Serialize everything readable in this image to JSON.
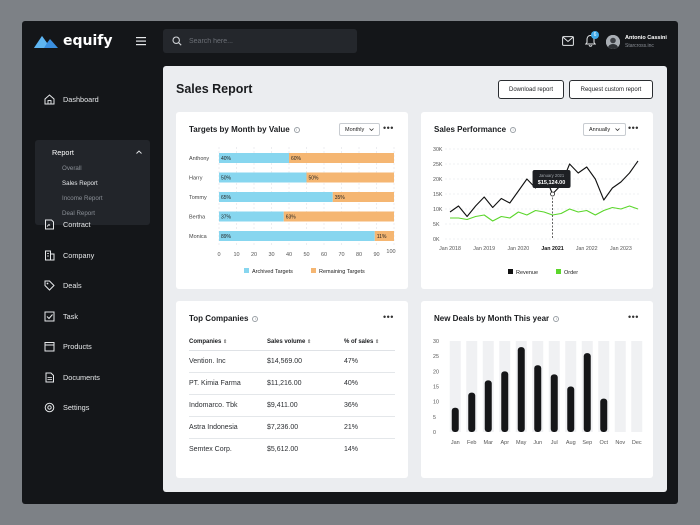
{
  "app": {
    "name": "equify"
  },
  "search": {
    "placeholder": "Search here..."
  },
  "notifications": {
    "count": "6"
  },
  "user": {
    "name": "Antonio Cassini",
    "company": "Starcross.inc"
  },
  "sidebar": {
    "dashboard": "Dashboard",
    "report": "Report",
    "report_items": [
      "Overall",
      "Sales Report",
      "Income Report",
      "Deal Report"
    ],
    "items": [
      "Contract",
      "Company",
      "Deals",
      "Task",
      "Products",
      "Documents",
      "Settings"
    ]
  },
  "page": {
    "title": "Sales Report",
    "download_label": "Download report",
    "custom_label": "Request custom report"
  },
  "colors": {
    "archived": "#87d6ef",
    "remaining": "#f5b672",
    "revenue": "#111111",
    "order": "#5bd62b"
  },
  "targets": {
    "title": "Targets by Month by Value",
    "filter": "Monthly",
    "legend": [
      "Archived Targets",
      "Remaining Targets"
    ],
    "rows": [
      {
        "name": "Anthony",
        "archived": 40,
        "remaining": 60,
        "a_label": "40%",
        "r_label": "60%"
      },
      {
        "name": "Harry",
        "archived": 50,
        "remaining": 50,
        "a_label": "50%",
        "r_label": "50%"
      },
      {
        "name": "Tommy",
        "archived": 65,
        "remaining": 35,
        "a_label": "65%",
        "r_label": "35%"
      },
      {
        "name": "Bertha",
        "archived": 37,
        "remaining": 63,
        "a_label": "37%",
        "r_label": "63%"
      },
      {
        "name": "Monica",
        "archived": 89,
        "remaining": 11,
        "a_label": "89%",
        "r_label": "11%"
      }
    ],
    "ticks": [
      "0",
      "10",
      "20",
      "30",
      "40",
      "50",
      "60",
      "70",
      "80",
      "90",
      "100"
    ]
  },
  "performance": {
    "title": "Sales Performance",
    "filter": "Annually",
    "tooltip": {
      "date": "January 2021",
      "value": "$15,124.00"
    },
    "legend": [
      "Revenue",
      "Order"
    ],
    "y_ticks": [
      "30K",
      "25K",
      "20K",
      "15K",
      "10K",
      "5K",
      "0K"
    ],
    "x_ticks": [
      "Jan 2018",
      "Jan 2019",
      "Jan 2020",
      "Jan 2021",
      "Jan 2022",
      "Jan 2023"
    ]
  },
  "companies": {
    "title": "Top Companies",
    "headers": [
      "Companies",
      "Sales volume",
      "% of sales"
    ],
    "rows": [
      [
        "Vention. Inc",
        "$14,569.00",
        "47%"
      ],
      [
        "PT. Kimia Farma",
        "$11,216.00",
        "40%"
      ],
      [
        "Indomarco. Tbk",
        "$9,411.00",
        "36%"
      ],
      [
        "Astra Indonesia",
        "$7,236.00",
        "21%"
      ],
      [
        "Semtex Corp.",
        "$5,612.00",
        "14%"
      ]
    ]
  },
  "deals": {
    "title": "New Deals by Month This year"
  },
  "chart_data": [
    {
      "type": "bar",
      "title": "Targets by Month by Value",
      "categories": [
        "Anthony",
        "Harry",
        "Tommy",
        "Bertha",
        "Monica"
      ],
      "series": [
        {
          "name": "Archived Targets",
          "values": [
            40,
            50,
            65,
            37,
            89
          ]
        },
        {
          "name": "Remaining Targets",
          "values": [
            60,
            50,
            35,
            63,
            11
          ]
        }
      ],
      "xlim": [
        0,
        100
      ],
      "stacked": true,
      "orientation": "horizontal",
      "legend": "bottom"
    },
    {
      "type": "line",
      "title": "Sales Performance",
      "x": [
        "2018-01",
        "2018-04",
        "2018-07",
        "2018-10",
        "2019-01",
        "2019-04",
        "2019-07",
        "2019-10",
        "2020-01",
        "2020-04",
        "2020-07",
        "2020-10",
        "2021-01",
        "2021-04",
        "2021-07",
        "2021-10",
        "2022-01",
        "2022-04",
        "2022-07",
        "2022-10",
        "2023-01",
        "2023-04",
        "2023-07"
      ],
      "series": [
        {
          "name": "Revenue",
          "values": [
            9,
            11,
            7.5,
            11,
            14,
            10.5,
            13.5,
            12,
            16,
            20,
            17,
            22,
            15,
            18,
            25,
            22,
            24,
            20,
            13,
            17,
            19,
            22,
            26
          ]
        },
        {
          "name": "Order",
          "values": [
            7,
            7,
            6.5,
            7.5,
            8,
            6,
            7.5,
            7,
            9,
            8,
            9.5,
            9,
            8,
            8.5,
            10,
            9,
            9.5,
            8,
            9.5,
            10.5,
            10,
            11,
            10
          ]
        }
      ],
      "ylim": [
        0,
        30
      ],
      "grid": true,
      "legend": "bottom"
    },
    {
      "type": "bar",
      "title": "New Deals by Month This year",
      "categories": [
        "Jan",
        "Feb",
        "Mar",
        "Apr",
        "May",
        "Jun",
        "Jul",
        "Aug",
        "Sep",
        "Oct",
        "Nov",
        "Dec"
      ],
      "values": [
        8,
        13,
        17,
        20,
        28,
        22,
        19,
        15,
        26,
        11,
        0,
        0
      ],
      "ylim": [
        0,
        30
      ],
      "y_ticks": [
        "30",
        "25",
        "20",
        "15",
        "10",
        "5",
        "0"
      ]
    }
  ]
}
